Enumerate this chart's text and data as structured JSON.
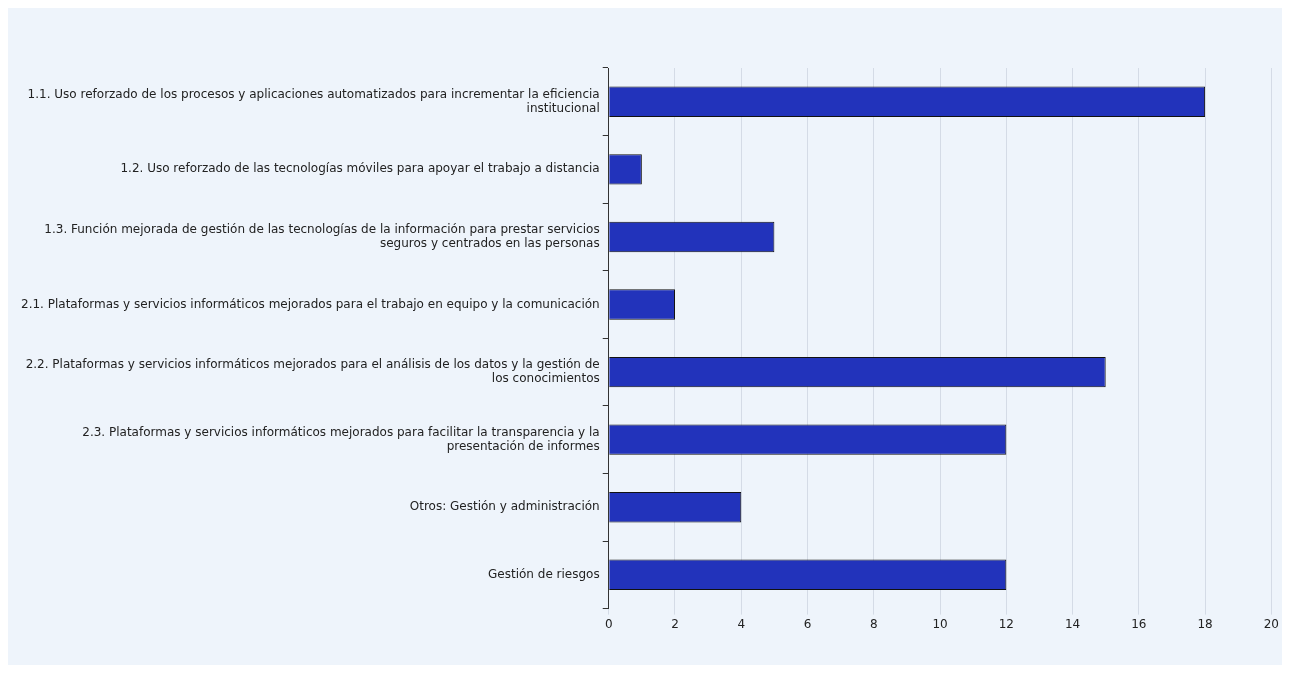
{
  "chart_data": {
    "type": "bar",
    "orientation": "horizontal",
    "categories": [
      "1.1. Uso reforzado de los procesos y aplicaciones automatizados para incrementar la eficiencia institucional",
      "1.2. Uso reforzado de las tecnologías móviles para apoyar el trabajo a distancia",
      "1.3. Función mejorada de gestión de las tecnologías de la información para prestar servicios seguros y centrados en las personas",
      "2.1. Plataformas y servicios informáticos mejorados para el trabajo en equipo y la comunicación",
      "2.2. Plataformas y servicios informáticos mejorados para el análisis de los datos y la gestión de los conocimientos",
      "2.3. Plataformas y servicios informáticos mejorados para facilitar la transparencia y la presentación de informes",
      "Otros: Gestión y administración",
      "Gestión de riesgos"
    ],
    "values": [
      18,
      1,
      5,
      2,
      15,
      12,
      4,
      12
    ],
    "color": "#2233bb",
    "xlim": [
      0,
      20
    ],
    "xticks": [
      0,
      2,
      4,
      6,
      8,
      10,
      12,
      14,
      16,
      18,
      20
    ],
    "grid": "x",
    "legend": false
  }
}
